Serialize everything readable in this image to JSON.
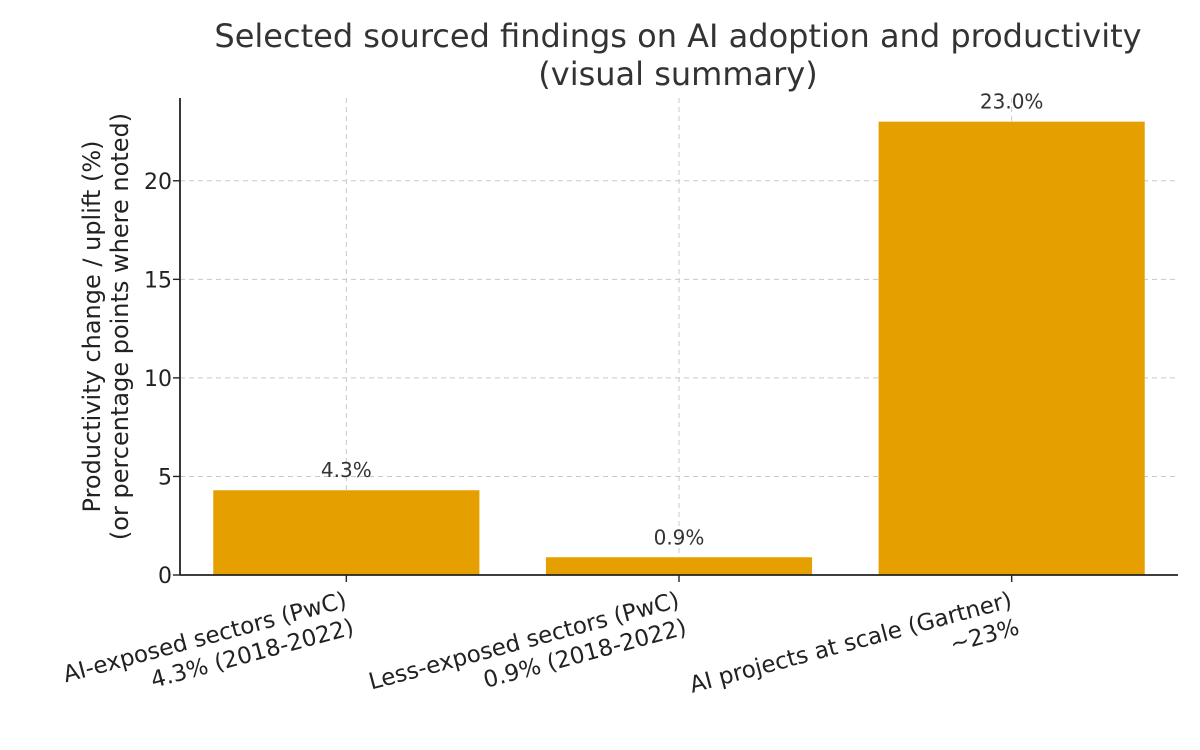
{
  "chart_data": {
    "type": "bar",
    "title_lines": [
      "Selected sourced findings on AI adoption and productivity",
      "(visual summary)"
    ],
    "ylabel_lines": [
      "Productivity change / uplift (%)",
      "(or percentage points where noted)"
    ],
    "xlabel": "",
    "categories": [
      [
        "AI-exposed sectors (PwC)",
        "4.3% (2018-2022)"
      ],
      [
        "Less-exposed sectors (PwC)",
        "0.9% (2018-2022)"
      ],
      [
        "AI projects at scale (Gartner)",
        "~23%"
      ]
    ],
    "values": [
      4.3,
      0.9,
      23.0
    ],
    "data_labels": [
      "4.3%",
      "0.9%",
      "23.0%"
    ],
    "ylim": [
      0,
      24.2
    ],
    "yticks": [
      0,
      5,
      10,
      15,
      20
    ],
    "grid": true,
    "bar_color": "#E5A000"
  }
}
